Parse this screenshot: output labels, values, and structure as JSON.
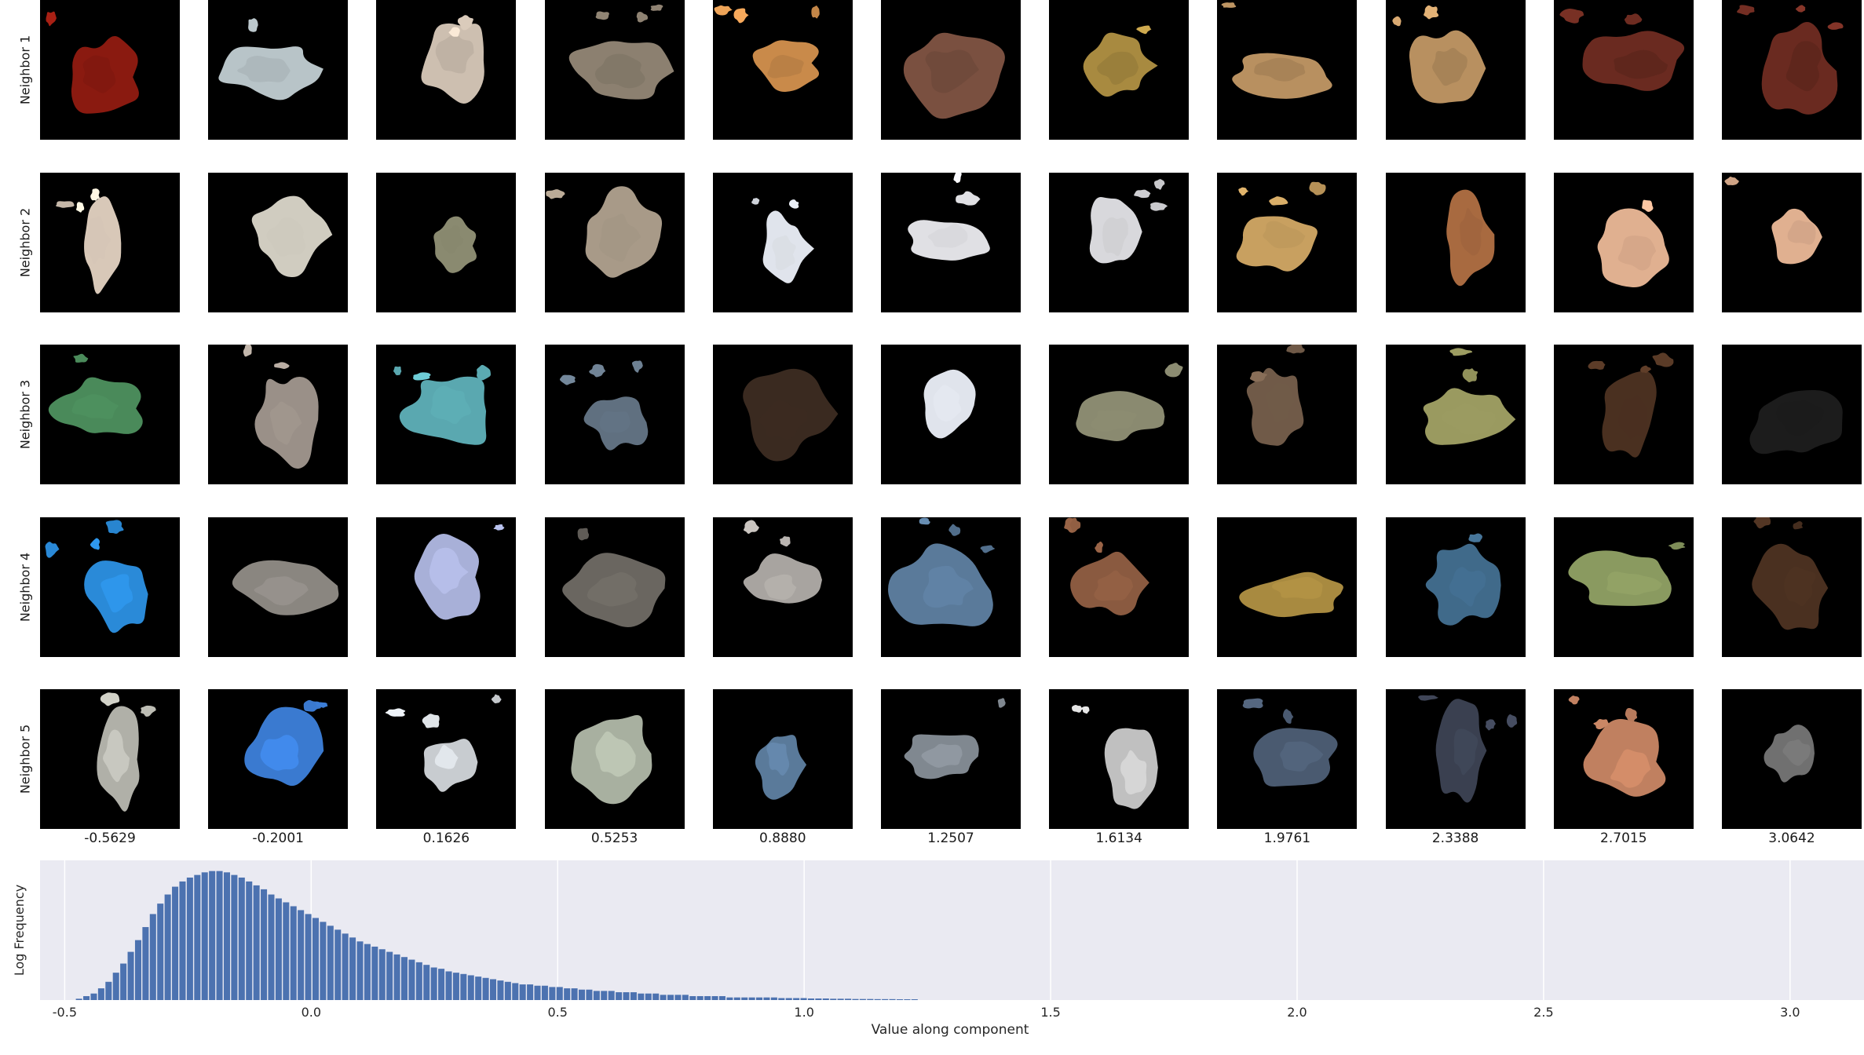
{
  "grid": {
    "row_labels": [
      "Neighbor 1",
      "Neighbor 2",
      "Neighbor 3",
      "Neighbor 4",
      "Neighbor 5"
    ],
    "column_values": [
      "-0.5629",
      "-0.2001",
      "0.1626",
      "0.5253",
      "0.8880",
      "1.2507",
      "1.6134",
      "1.9761",
      "2.3388",
      "2.7015",
      "3.0642"
    ],
    "patch_colors": [
      [
        "#8a1a10",
        "#b8c4c8",
        "#cdbfb0",
        "#8c8070",
        "#c98a4a",
        "#7a5040",
        "#a88a40",
        "#b89060",
        "#b89060",
        "#6a2a20",
        "#6a2a20"
      ],
      [
        "#d8c8b8",
        "#d0ccc0",
        "#8a8a70",
        "#a89a88",
        "#e0e4ec",
        "#e0e0e4",
        "#d8d8dc",
        "#c8a060",
        "#a86a40",
        "#e0b090",
        "#e0b090"
      ],
      [
        "#4a8a5a",
        "#9a9088",
        "#5aa8b0",
        "#607080",
        "#3a2a20",
        "#e0e4ec",
        "#8a8a70",
        "#705a48",
        "#9a9a60",
        "#4a3020",
        "#1c1c1c"
      ],
      [
        "#2a8ad8",
        "#8a8680",
        "#a8b0d8",
        "#6a6660",
        "#a8a4a0",
        "#5a7a9a",
        "#8a5a40",
        "#a88a40",
        "#406a8a",
        "#8a9a60",
        "#4a3020"
      ],
      [
        "#b0b0a8",
        "#3a7ad0",
        "#c8ccd0",
        "#a8b0a0",
        "#5a7a9a",
        "#808890",
        "#c0c0c0",
        "#4a5a70",
        "#3a4050",
        "#c08060",
        "#707070"
      ]
    ]
  },
  "chart_data": {
    "type": "bar",
    "xlabel": "Value along component",
    "ylabel": "Log Frequency",
    "xlim": [
      -0.55,
      3.15
    ],
    "xticks": [
      "-0.5",
      "0.0",
      "0.5",
      "1.0",
      "1.5",
      "2.0",
      "2.5",
      "3.0"
    ],
    "xtick_values": [
      -0.5,
      0.0,
      0.5,
      1.0,
      1.5,
      2.0,
      2.5,
      3.0
    ],
    "grid": true,
    "bar_color": "#4c72b0",
    "background_color": "#eaeaf2",
    "bin_width": 0.0147,
    "bins": [
      {
        "x": -0.47,
        "v": 0.01
      },
      {
        "x": -0.455,
        "v": 0.03
      },
      {
        "x": -0.44,
        "v": 0.05
      },
      {
        "x": -0.425,
        "v": 0.09
      },
      {
        "x": -0.41,
        "v": 0.14
      },
      {
        "x": -0.395,
        "v": 0.21
      },
      {
        "x": -0.38,
        "v": 0.28
      },
      {
        "x": -0.365,
        "v": 0.37
      },
      {
        "x": -0.35,
        "v": 0.46
      },
      {
        "x": -0.335,
        "v": 0.56
      },
      {
        "x": -0.32,
        "v": 0.66
      },
      {
        "x": -0.305,
        "v": 0.74
      },
      {
        "x": -0.29,
        "v": 0.81
      },
      {
        "x": -0.275,
        "v": 0.87
      },
      {
        "x": -0.26,
        "v": 0.91
      },
      {
        "x": -0.245,
        "v": 0.94
      },
      {
        "x": -0.23,
        "v": 0.96
      },
      {
        "x": -0.215,
        "v": 0.98
      },
      {
        "x": -0.2,
        "v": 0.99
      },
      {
        "x": -0.185,
        "v": 0.99
      },
      {
        "x": -0.17,
        "v": 0.98
      },
      {
        "x": -0.155,
        "v": 0.96
      },
      {
        "x": -0.14,
        "v": 0.94
      },
      {
        "x": -0.125,
        "v": 0.91
      },
      {
        "x": -0.11,
        "v": 0.88
      },
      {
        "x": -0.095,
        "v": 0.85
      },
      {
        "x": -0.08,
        "v": 0.81
      },
      {
        "x": -0.065,
        "v": 0.78
      },
      {
        "x": -0.05,
        "v": 0.75
      },
      {
        "x": -0.035,
        "v": 0.72
      },
      {
        "x": -0.02,
        "v": 0.69
      },
      {
        "x": -0.005,
        "v": 0.66
      },
      {
        "x": 0.01,
        "v": 0.63
      },
      {
        "x": 0.025,
        "v": 0.6
      },
      {
        "x": 0.04,
        "v": 0.57
      },
      {
        "x": 0.055,
        "v": 0.54
      },
      {
        "x": 0.07,
        "v": 0.51
      },
      {
        "x": 0.085,
        "v": 0.48
      },
      {
        "x": 0.1,
        "v": 0.45
      },
      {
        "x": 0.115,
        "v": 0.43
      },
      {
        "x": 0.13,
        "v": 0.41
      },
      {
        "x": 0.145,
        "v": 0.39
      },
      {
        "x": 0.16,
        "v": 0.37
      },
      {
        "x": 0.175,
        "v": 0.35
      },
      {
        "x": 0.19,
        "v": 0.33
      },
      {
        "x": 0.205,
        "v": 0.31
      },
      {
        "x": 0.22,
        "v": 0.29
      },
      {
        "x": 0.235,
        "v": 0.27
      },
      {
        "x": 0.25,
        "v": 0.25
      },
      {
        "x": 0.265,
        "v": 0.24
      },
      {
        "x": 0.28,
        "v": 0.22
      },
      {
        "x": 0.295,
        "v": 0.21
      },
      {
        "x": 0.31,
        "v": 0.2
      },
      {
        "x": 0.325,
        "v": 0.19
      },
      {
        "x": 0.34,
        "v": 0.18
      },
      {
        "x": 0.355,
        "v": 0.17
      },
      {
        "x": 0.37,
        "v": 0.16
      },
      {
        "x": 0.385,
        "v": 0.15
      },
      {
        "x": 0.4,
        "v": 0.14
      },
      {
        "x": 0.415,
        "v": 0.13
      },
      {
        "x": 0.43,
        "v": 0.12
      },
      {
        "x": 0.445,
        "v": 0.12
      },
      {
        "x": 0.46,
        "v": 0.11
      },
      {
        "x": 0.475,
        "v": 0.11
      },
      {
        "x": 0.49,
        "v": 0.1
      },
      {
        "x": 0.505,
        "v": 0.1
      },
      {
        "x": 0.52,
        "v": 0.09
      },
      {
        "x": 0.535,
        "v": 0.09
      },
      {
        "x": 0.55,
        "v": 0.08
      },
      {
        "x": 0.565,
        "v": 0.08
      },
      {
        "x": 0.58,
        "v": 0.07
      },
      {
        "x": 0.595,
        "v": 0.07
      },
      {
        "x": 0.61,
        "v": 0.07
      },
      {
        "x": 0.625,
        "v": 0.06
      },
      {
        "x": 0.64,
        "v": 0.06
      },
      {
        "x": 0.655,
        "v": 0.06
      },
      {
        "x": 0.67,
        "v": 0.05
      },
      {
        "x": 0.685,
        "v": 0.05
      },
      {
        "x": 0.7,
        "v": 0.05
      },
      {
        "x": 0.715,
        "v": 0.04
      },
      {
        "x": 0.73,
        "v": 0.04
      },
      {
        "x": 0.745,
        "v": 0.04
      },
      {
        "x": 0.76,
        "v": 0.04
      },
      {
        "x": 0.775,
        "v": 0.03
      },
      {
        "x": 0.79,
        "v": 0.03
      },
      {
        "x": 0.805,
        "v": 0.03
      },
      {
        "x": 0.82,
        "v": 0.03
      },
      {
        "x": 0.835,
        "v": 0.03
      },
      {
        "x": 0.85,
        "v": 0.02
      },
      {
        "x": 0.865,
        "v": 0.02
      },
      {
        "x": 0.88,
        "v": 0.02
      },
      {
        "x": 0.895,
        "v": 0.02
      },
      {
        "x": 0.91,
        "v": 0.02
      },
      {
        "x": 0.925,
        "v": 0.02
      },
      {
        "x": 0.94,
        "v": 0.02
      },
      {
        "x": 0.955,
        "v": 0.015
      },
      {
        "x": 0.97,
        "v": 0.015
      },
      {
        "x": 0.985,
        "v": 0.015
      },
      {
        "x": 1.0,
        "v": 0.015
      },
      {
        "x": 1.015,
        "v": 0.012
      },
      {
        "x": 1.03,
        "v": 0.012
      },
      {
        "x": 1.045,
        "v": 0.012
      },
      {
        "x": 1.06,
        "v": 0.01
      },
      {
        "x": 1.075,
        "v": 0.01
      },
      {
        "x": 1.09,
        "v": 0.01
      },
      {
        "x": 1.105,
        "v": 0.008
      },
      {
        "x": 1.12,
        "v": 0.008
      },
      {
        "x": 1.135,
        "v": 0.008
      },
      {
        "x": 1.15,
        "v": 0.007
      },
      {
        "x": 1.165,
        "v": 0.007
      },
      {
        "x": 1.18,
        "v": 0.007
      },
      {
        "x": 1.195,
        "v": 0.006
      },
      {
        "x": 1.21,
        "v": 0.006
      },
      {
        "x": 1.225,
        "v": 0.006
      }
    ]
  }
}
